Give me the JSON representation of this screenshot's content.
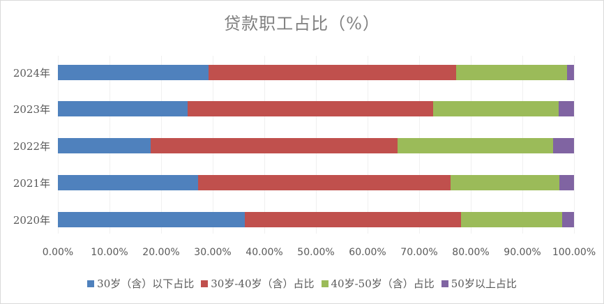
{
  "chart_data": {
    "type": "bar",
    "orientation": "horizontal",
    "stacked": "percent",
    "title": "贷款职工占比（%）",
    "xlabel": "",
    "ylabel": "",
    "xlim": [
      0,
      100
    ],
    "grid": true,
    "legend_position": "bottom",
    "categories": [
      "2024年",
      "2023年",
      "2022年",
      "2021年",
      "2020年"
    ],
    "x_ticks": [
      "0.00%",
      "10.00%",
      "20.00%",
      "30.00%",
      "40.00%",
      "50.00%",
      "60.00%",
      "70.00%",
      "80.00%",
      "90.00%",
      "100.00%"
    ],
    "series": [
      {
        "name": "30岁（含）以下占比",
        "color": "#4f81bd",
        "values": [
          29.2,
          25.1,
          18.0,
          27.2,
          36.2
        ]
      },
      {
        "name": "30岁-40岁（含）占比",
        "color": "#c0504d",
        "values": [
          48.0,
          47.6,
          47.8,
          48.9,
          41.9
        ]
      },
      {
        "name": "40岁-50岁（含）占比",
        "color": "#9bbb59",
        "values": [
          21.4,
          24.3,
          30.1,
          21.1,
          19.6
        ]
      },
      {
        "name": "50岁以上占比",
        "color": "#8064a2",
        "values": [
          1.4,
          3.0,
          4.1,
          2.8,
          2.3
        ]
      }
    ]
  }
}
